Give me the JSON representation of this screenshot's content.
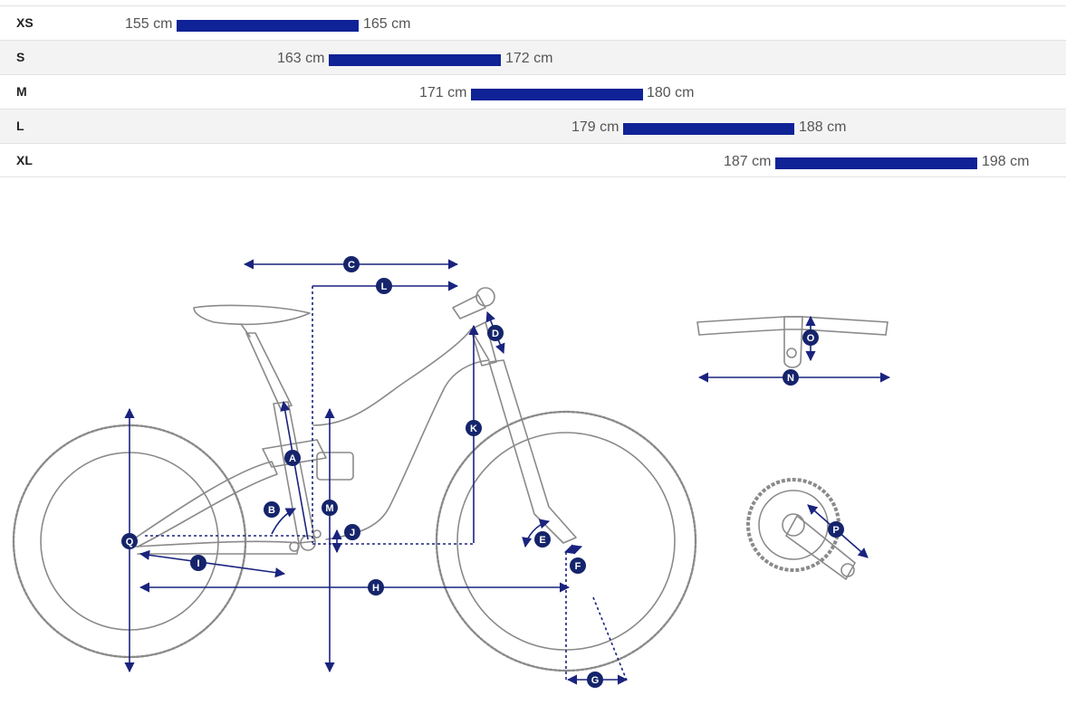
{
  "size_chart": {
    "rows": [
      {
        "size": "XS",
        "min": "155 cm",
        "max": "165 cm",
        "min_value": 155,
        "max_value": 165
      },
      {
        "size": "S",
        "min": "163 cm",
        "max": "172 cm",
        "min_value": 163,
        "max_value": 172
      },
      {
        "size": "M",
        "min": "171 cm",
        "max": "180 cm",
        "min_value": 171,
        "max_value": 180
      },
      {
        "size": "L",
        "min": "179 cm",
        "max": "188 cm",
        "min_value": 179,
        "max_value": 188
      },
      {
        "size": "XL",
        "min": "187 cm",
        "max": "198 cm",
        "min_value": 187,
        "max_value": 198
      }
    ]
  },
  "geometry": {
    "labels": [
      "A",
      "B",
      "C",
      "D",
      "E",
      "F",
      "G",
      "H",
      "I",
      "J",
      "K",
      "L",
      "M",
      "N",
      "O",
      "P",
      "Q"
    ]
  },
  "colors": {
    "bar": "#0f2296",
    "dimension": "#1a237e",
    "outline": "#8a8a8a",
    "badge": "#15246b"
  }
}
